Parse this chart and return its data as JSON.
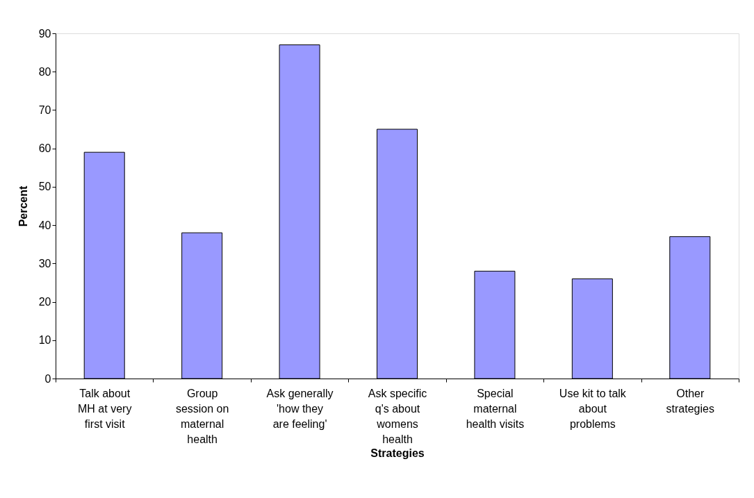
{
  "chart_data": {
    "type": "bar",
    "xlabel": "Strategies",
    "ylabel": "Percent",
    "categories": [
      "Talk about\nMH at very\nfirst visit",
      "Group\nsession on\nmaternal\nhealth",
      "Ask generally\n'how they\nare feeling'",
      "Ask specific\nq's about\nwomens\nhealth",
      "Special\nmaternal\nhealth visits",
      "Use kit to talk\nabout\nproblems",
      "Other\nstrategies"
    ],
    "values": [
      59,
      38,
      87,
      65,
      28,
      26,
      37
    ],
    "color": "#9999ff",
    "ylim": [
      0,
      90
    ],
    "yticks": [
      0,
      10,
      20,
      30,
      40,
      50,
      60,
      70,
      80,
      90
    ],
    "grid": false
  }
}
